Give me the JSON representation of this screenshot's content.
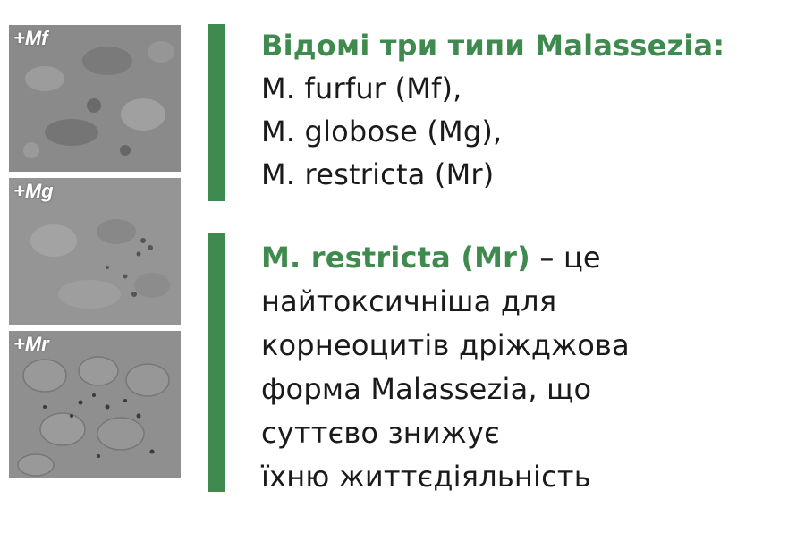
{
  "panels": [
    {
      "label": "+Mf"
    },
    {
      "label": "+Mg"
    },
    {
      "label": "+Mr"
    }
  ],
  "block1": {
    "heading": "Відомі три типи Malassezia:",
    "lines": [
      "M. furfur (Mf),",
      "M. globose (Mg),",
      "M. restricta (Mr)"
    ]
  },
  "block2": {
    "highlight": "M. restricta (Mr)",
    "first_line_rest": " – це",
    "lines": [
      "найтоксичніша для",
      "корнеоцитів дріжджова",
      "форма Malassezia, що",
      "суттєво знижує",
      "їхню життєдіяльність"
    ]
  },
  "colors": {
    "accent": "#3f8a4f",
    "text": "#1a1a1a"
  }
}
